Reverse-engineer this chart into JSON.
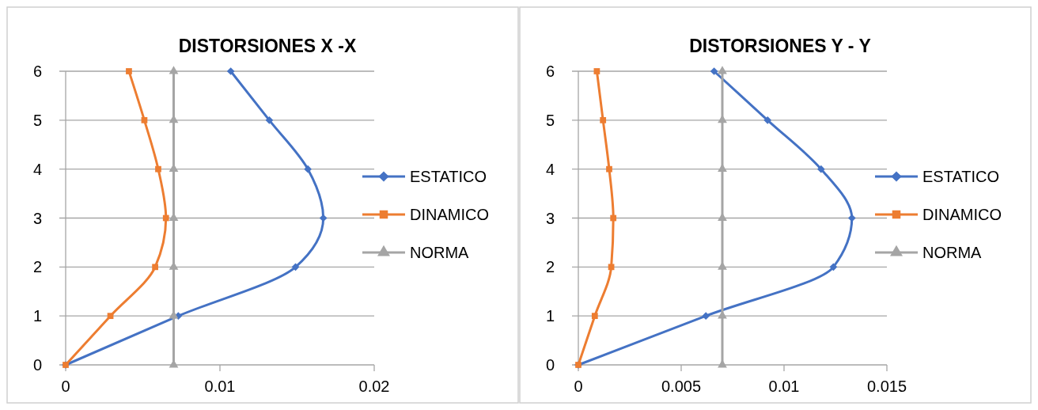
{
  "chart_data": [
    {
      "type": "line",
      "title": "DISTORSIONES X -X",
      "xlim": [
        0,
        0.02
      ],
      "xticks": [
        0,
        0.01,
        0.02
      ],
      "ylim": [
        0,
        6
      ],
      "yticks": [
        0,
        1,
        2,
        3,
        4,
        5,
        6
      ],
      "grid": "y",
      "legend": "right",
      "series": [
        {
          "name": "ESTATICO",
          "color": "#4472c4",
          "marker": "diamond",
          "x": [
            0,
            0.0073,
            0.0149,
            0.0167,
            0.0157,
            0.0132,
            0.0107
          ],
          "values": [
            0,
            1,
            2,
            3,
            4,
            5,
            6
          ]
        },
        {
          "name": "DINAMICO",
          "color": "#ed7d31",
          "marker": "square",
          "x": [
            0,
            0.0029,
            0.0058,
            0.0065,
            0.006,
            0.0051,
            0.0041
          ],
          "values": [
            0,
            1,
            2,
            3,
            4,
            5,
            6
          ]
        },
        {
          "name": "NORMA",
          "color": "#a5a5a5",
          "marker": "triangle",
          "x": [
            0.007,
            0.007,
            0.007,
            0.007,
            0.007,
            0.007,
            0.007
          ],
          "values": [
            0,
            1,
            2,
            3,
            4,
            5,
            6
          ]
        }
      ]
    },
    {
      "type": "line",
      "title": "DISTORSIONES Y - Y",
      "xlim": [
        0,
        0.015
      ],
      "xticks": [
        0,
        0.005,
        0.01,
        0.015
      ],
      "ylim": [
        0,
        6
      ],
      "yticks": [
        0,
        1,
        2,
        3,
        4,
        5,
        6
      ],
      "grid": "y",
      "legend": "right",
      "series": [
        {
          "name": "ESTATICO",
          "color": "#4472c4",
          "marker": "diamond",
          "x": [
            0,
            0.0062,
            0.0124,
            0.0133,
            0.0118,
            0.0092,
            0.0066
          ],
          "values": [
            0,
            1,
            2,
            3,
            4,
            5,
            6
          ]
        },
        {
          "name": "DINAMICO",
          "color": "#ed7d31",
          "marker": "square",
          "x": [
            0,
            0.0008,
            0.0016,
            0.0017,
            0.0015,
            0.0012,
            0.0009
          ],
          "values": [
            0,
            1,
            2,
            3,
            4,
            5,
            6
          ]
        },
        {
          "name": "NORMA",
          "color": "#a5a5a5",
          "marker": "triangle",
          "x": [
            0.007,
            0.007,
            0.007,
            0.007,
            0.007,
            0.007,
            0.007
          ],
          "values": [
            0,
            1,
            2,
            3,
            4,
            5,
            6
          ]
        }
      ]
    }
  ]
}
